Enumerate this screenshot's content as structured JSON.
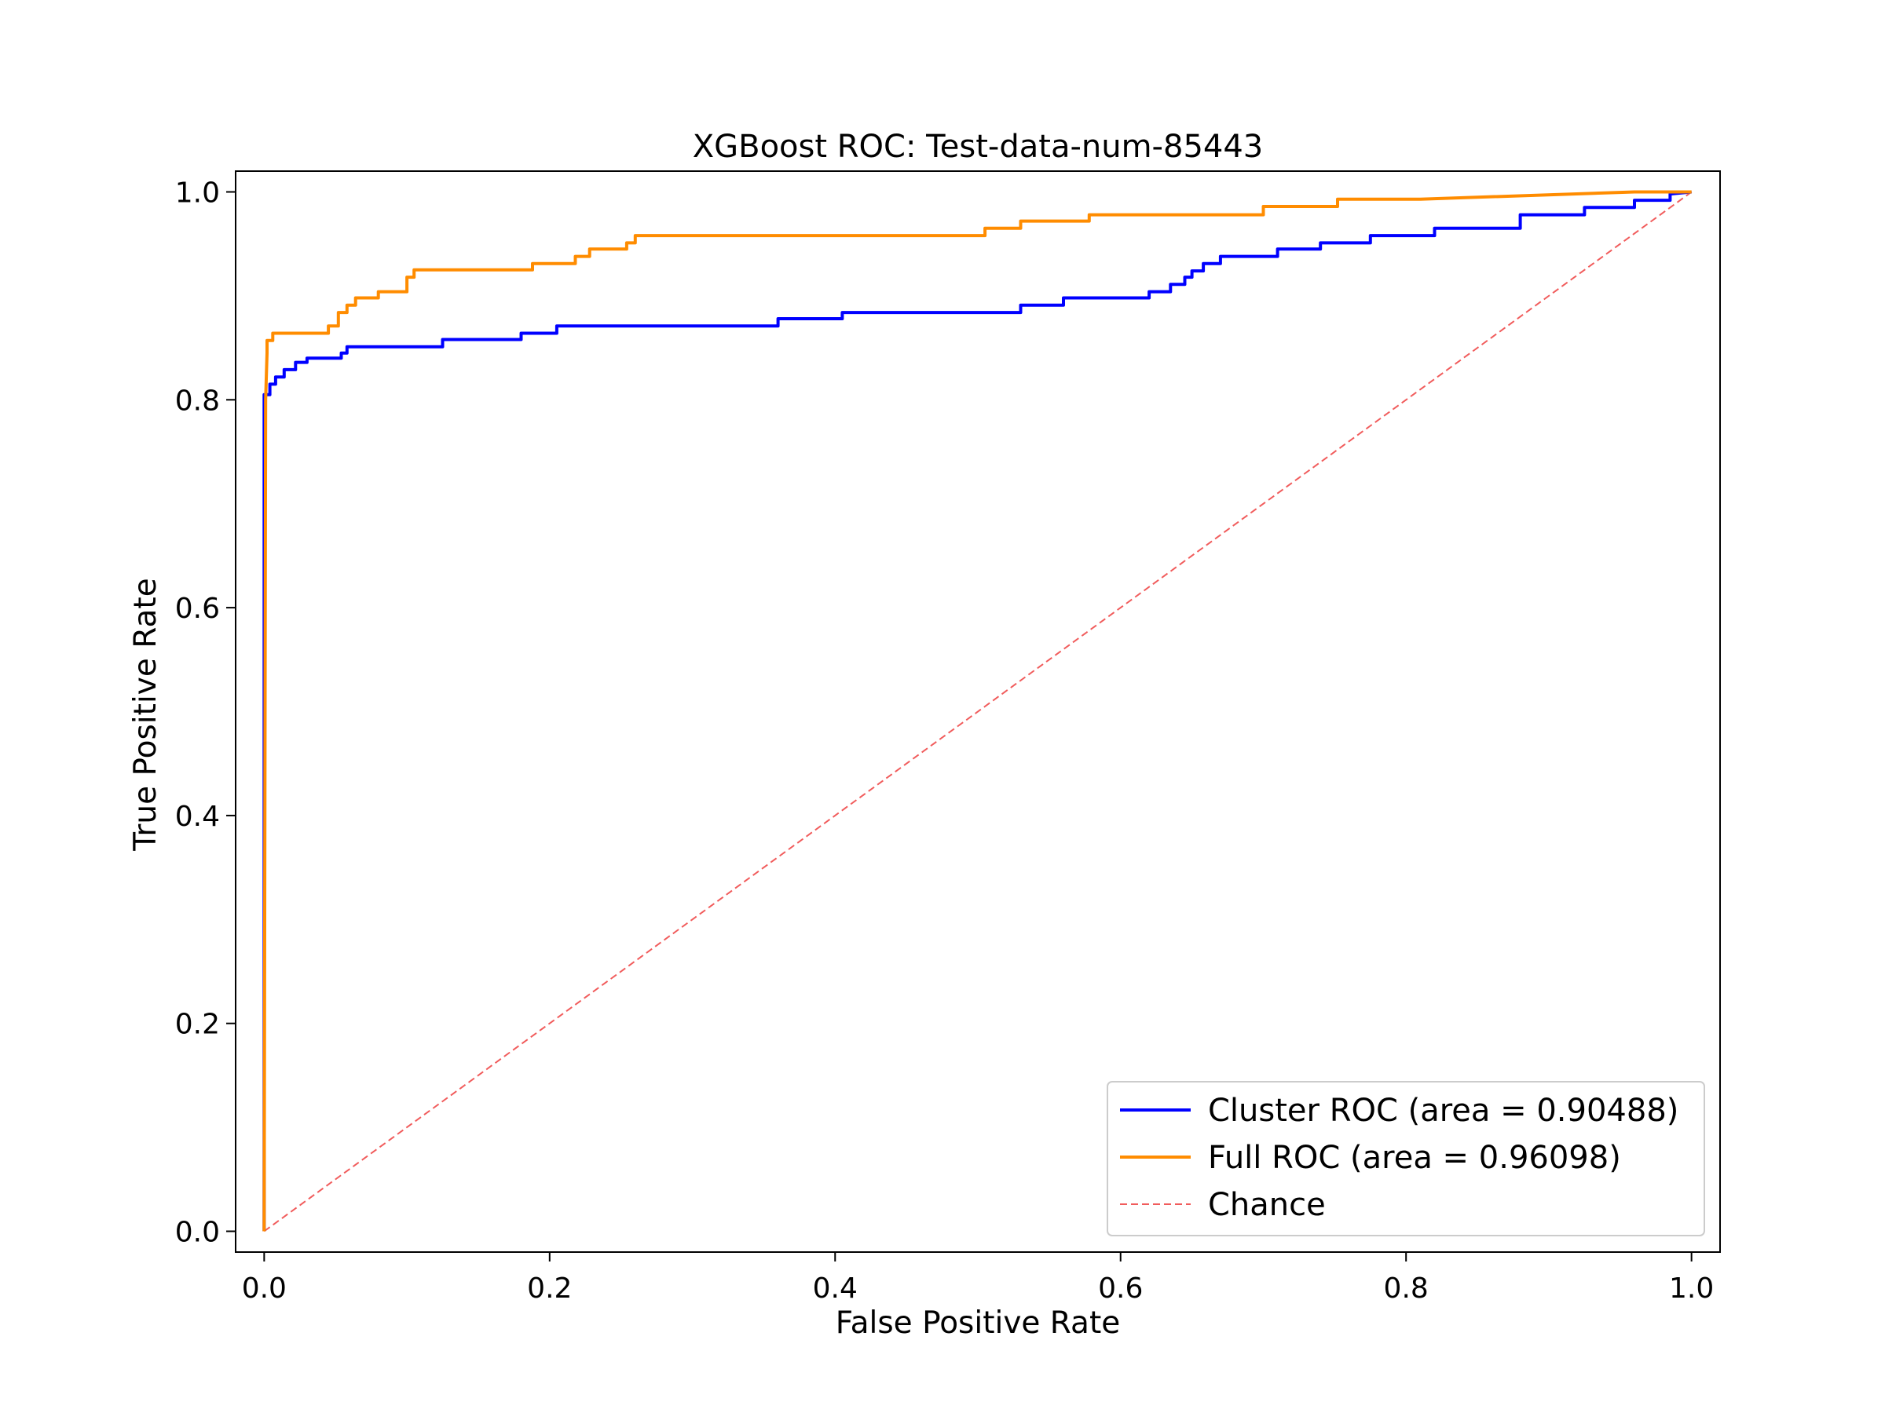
{
  "chart_data": {
    "type": "line",
    "title": "XGBoost ROC: Test-data-num-85443",
    "xlabel": "False Positive Rate",
    "ylabel": "True Positive Rate",
    "xlim": [
      -0.02,
      1.02
    ],
    "ylim": [
      -0.02,
      1.02
    ],
    "xticks": [
      "0.0",
      "0.2",
      "0.4",
      "0.6",
      "0.8",
      "1.0"
    ],
    "yticks": [
      "0.0",
      "0.2",
      "0.4",
      "0.6",
      "0.8",
      "1.0"
    ],
    "legend_position": "lower-right",
    "grid": false,
    "series": [
      {
        "name": "Cluster ROC (area = 0.90488)",
        "color": "#0000ff",
        "style": "solid",
        "x": [
          0,
          0,
          0.004,
          0.004,
          0.008,
          0.008,
          0.014,
          0.014,
          0.022,
          0.022,
          0.03,
          0.03,
          0.054,
          0.054,
          0.058,
          0.058,
          0.125,
          0.125,
          0.18,
          0.18,
          0.205,
          0.205,
          0.36,
          0.36,
          0.405,
          0.405,
          0.53,
          0.53,
          0.56,
          0.56,
          0.62,
          0.62,
          0.635,
          0.635,
          0.645,
          0.645,
          0.65,
          0.65,
          0.658,
          0.658,
          0.67,
          0.67,
          0.71,
          0.71,
          0.74,
          0.74,
          0.775,
          0.775,
          0.82,
          0.82,
          0.88,
          0.88,
          0.925,
          0.925,
          0.96,
          0.96,
          0.985,
          0.985,
          1.0
        ],
        "y": [
          0,
          0.805,
          0.805,
          0.815,
          0.815,
          0.822,
          0.822,
          0.829,
          0.829,
          0.836,
          0.836,
          0.84,
          0.84,
          0.845,
          0.845,
          0.851,
          0.851,
          0.858,
          0.858,
          0.864,
          0.864,
          0.871,
          0.871,
          0.878,
          0.878,
          0.884,
          0.884,
          0.891,
          0.891,
          0.898,
          0.898,
          0.904,
          0.904,
          0.911,
          0.911,
          0.918,
          0.918,
          0.924,
          0.924,
          0.931,
          0.931,
          0.938,
          0.938,
          0.945,
          0.945,
          0.951,
          0.951,
          0.958,
          0.958,
          0.965,
          0.965,
          0.978,
          0.978,
          0.985,
          0.985,
          0.992,
          0.992,
          0.998,
          1.0
        ]
      },
      {
        "name": "Full ROC (area = 0.96098)",
        "color": "#ff8c00",
        "style": "solid",
        "x": [
          0,
          0.001,
          0.002,
          0.002,
          0.006,
          0.006,
          0.045,
          0.045,
          0.052,
          0.052,
          0.058,
          0.058,
          0.064,
          0.064,
          0.08,
          0.08,
          0.1,
          0.1,
          0.105,
          0.105,
          0.188,
          0.188,
          0.218,
          0.218,
          0.228,
          0.228,
          0.254,
          0.254,
          0.26,
          0.26,
          0.505,
          0.505,
          0.53,
          0.53,
          0.578,
          0.578,
          0.7,
          0.7,
          0.752,
          0.752,
          0.81,
          0.96,
          1.0
        ],
        "y": [
          0,
          0.8,
          0.845,
          0.857,
          0.857,
          0.864,
          0.864,
          0.871,
          0.871,
          0.884,
          0.884,
          0.891,
          0.891,
          0.898,
          0.898,
          0.904,
          0.904,
          0.918,
          0.918,
          0.925,
          0.925,
          0.931,
          0.931,
          0.938,
          0.938,
          0.945,
          0.945,
          0.951,
          0.951,
          0.958,
          0.958,
          0.965,
          0.965,
          0.972,
          0.972,
          0.978,
          0.978,
          0.986,
          0.986,
          0.993,
          0.993,
          1.0,
          1.0
        ]
      },
      {
        "name": "Chance",
        "color": "#f15c5c",
        "style": "dashed",
        "x": [
          0,
          1
        ],
        "y": [
          0,
          1
        ]
      }
    ]
  }
}
